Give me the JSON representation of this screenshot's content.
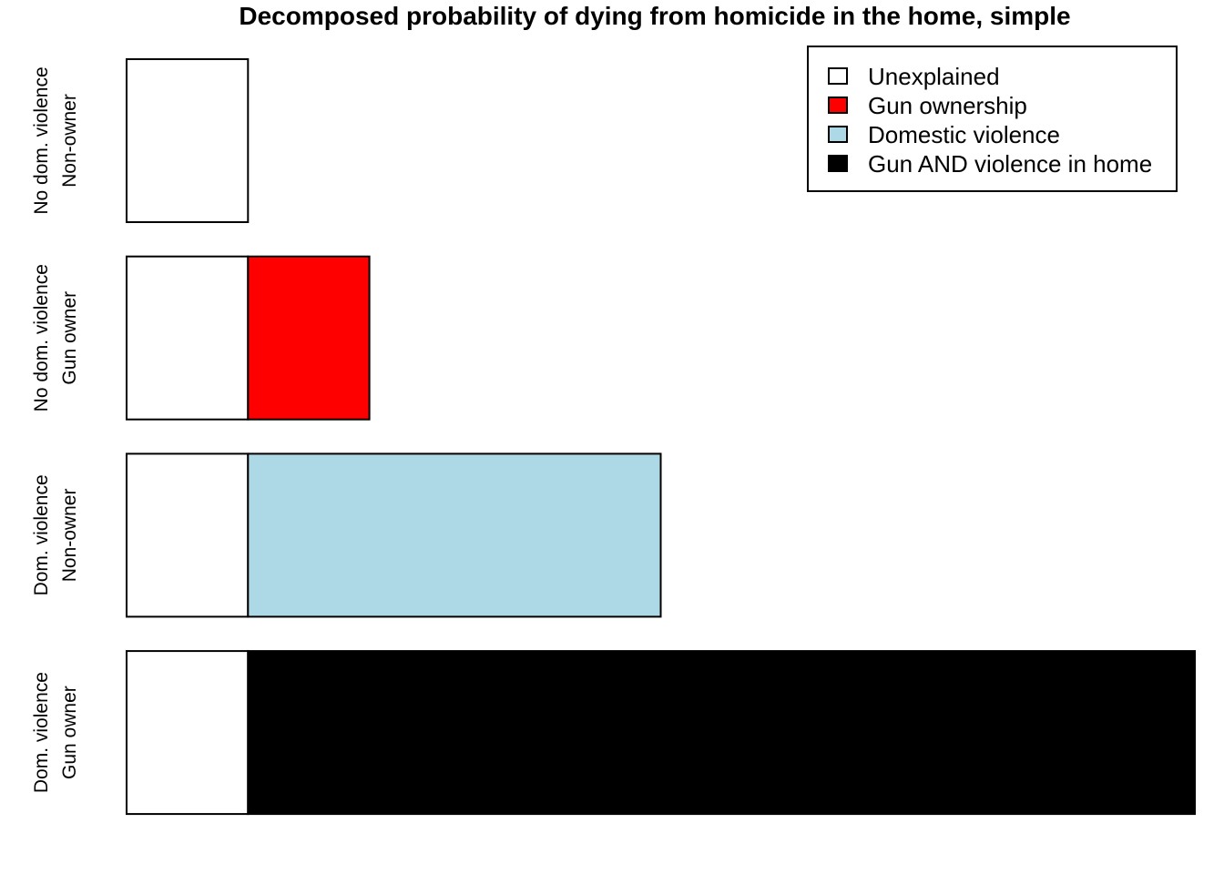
{
  "chart_data": {
    "type": "bar",
    "orientation": "horizontal",
    "stacked": true,
    "title": "Decomposed probability of dying from homicide in the home, simple",
    "xlabel": "",
    "ylabel": "",
    "categories": [
      [
        "No dom. violence",
        "Non-owner"
      ],
      [
        "No dom. violence",
        "Gun owner"
      ],
      [
        "Dom. violence",
        "Non-owner"
      ],
      [
        "Dom. violence",
        "Gun owner"
      ]
    ],
    "series": [
      {
        "name": "Unexplained",
        "color": "#ffffff",
        "values": [
          1,
          1,
          1,
          1
        ]
      },
      {
        "name": "Gun ownership",
        "color": "#ff0000",
        "values": [
          0,
          1,
          0,
          0
        ]
      },
      {
        "name": "Domestic violence",
        "color": "#add8e6",
        "values": [
          0,
          0,
          3.4,
          0
        ]
      },
      {
        "name": "Gun AND violence in home",
        "color": "#000000",
        "values": [
          0,
          0,
          0,
          7.8
        ]
      }
    ],
    "xlim": [
      0,
      8.8
    ],
    "axes_visible": false,
    "grid": false,
    "legend_position": "top-right"
  }
}
